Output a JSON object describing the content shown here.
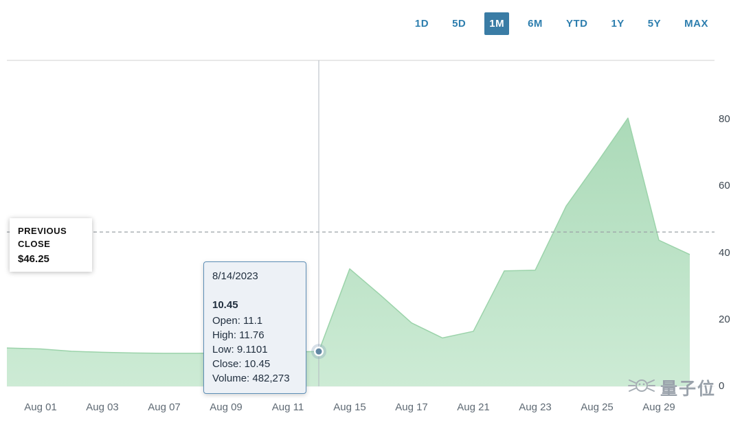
{
  "tabs": {
    "items": [
      "1D",
      "5D",
      "1M",
      "6M",
      "YTD",
      "1Y",
      "5Y",
      "MAX"
    ],
    "selected": "1M",
    "accent_color": "#3a7ca5"
  },
  "previous_close": {
    "label": "PREVIOUS CLOSE",
    "value": "$46.25"
  },
  "tooltip": {
    "date": "8/14/2023",
    "price": "10.45",
    "rows": [
      "Open: 11.1",
      "High: 11.76",
      "Low: 9.1101",
      "Close: 10.45",
      "Volume: 482,273"
    ]
  },
  "watermark": {
    "logo_icon": "qbitai-whiskers-logo",
    "text": "量子位"
  },
  "chart_data": {
    "type": "area",
    "title": "",
    "xlabel": "",
    "ylabel": "",
    "x": [
      "Aug 01",
      "Aug 02",
      "Aug 03",
      "Aug 04",
      "Aug 07",
      "Aug 08",
      "Aug 09",
      "Aug 10",
      "Aug 11",
      "Aug 14",
      "Aug 15",
      "Aug 16",
      "Aug 17",
      "Aug 18",
      "Aug 21",
      "Aug 22",
      "Aug 23",
      "Aug 24",
      "Aug 25",
      "Aug 28",
      "Aug 29",
      "Aug 30"
    ],
    "values": [
      11.2,
      10.5,
      10.2,
      10.0,
      9.9,
      9.9,
      10.0,
      10.2,
      10.3,
      10.45,
      35.2,
      27.3,
      19.0,
      14.5,
      16.5,
      34.6,
      34.8,
      54.0,
      67.0,
      80.4,
      43.8,
      39.5
    ],
    "x_tick_indices": [
      0,
      2,
      4,
      6,
      8,
      10,
      12,
      14,
      16,
      18,
      20
    ],
    "y_ticks": [
      0,
      20,
      40,
      60,
      80
    ],
    "ylim": [
      0,
      100
    ],
    "grid": false,
    "previous_close_value": 46.25,
    "marker": {
      "index": 9,
      "value": 10.45
    },
    "left_edge_value": 11.5,
    "colors": {
      "area_top": "#abdab8",
      "area_bottom": "#cdebd5",
      "line": "#9bd3aa",
      "crosshair": "#b3bac1",
      "dashed": "#9aa0a6",
      "marker_halo": "rgba(130,158,182,0.32)",
      "marker_dot": "#6288a3",
      "axis_text": "#5f6a74",
      "border": "#d0d0d0"
    }
  }
}
